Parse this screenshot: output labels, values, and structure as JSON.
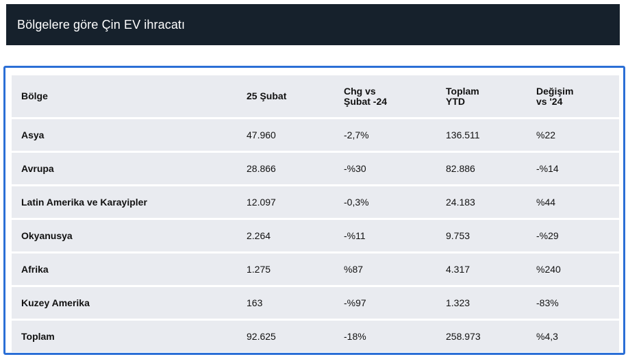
{
  "header": {
    "title": "Bölgelere göre Çin EV ihracatı"
  },
  "table": {
    "columns": [
      [
        "Bölge"
      ],
      [
        "25 Şubat"
      ],
      [
        "Chg vs",
        "Şubat -24"
      ],
      [
        "Toplam",
        "YTD"
      ],
      [
        "Değişim",
        "vs '24"
      ]
    ],
    "rows": [
      [
        "Asya",
        "47.960",
        "-2,7%",
        "136.511",
        "%22"
      ],
      [
        "Avrupa",
        "28.866",
        "-%30",
        "82.886",
        "-%14"
      ],
      [
        "Latin Amerika ve Karayipler",
        "12.097",
        "-0,3%",
        "24.183",
        "%44"
      ],
      [
        "Okyanusya",
        "2.264",
        "-%11",
        "9.753",
        "-%29"
      ],
      [
        "Afrika",
        "1.275",
        "%87",
        "4.317",
        "%240"
      ],
      [
        "Kuzey Amerika",
        "163",
        "-%97",
        "1.323",
        "-83%"
      ],
      [
        "Toplam",
        "92.625",
        "-18%",
        "258.973",
        "%4,3"
      ]
    ]
  },
  "colors": {
    "header_background": "#16212c",
    "frame_border": "#2b6fd6",
    "row_background": "#e9ebf0"
  }
}
